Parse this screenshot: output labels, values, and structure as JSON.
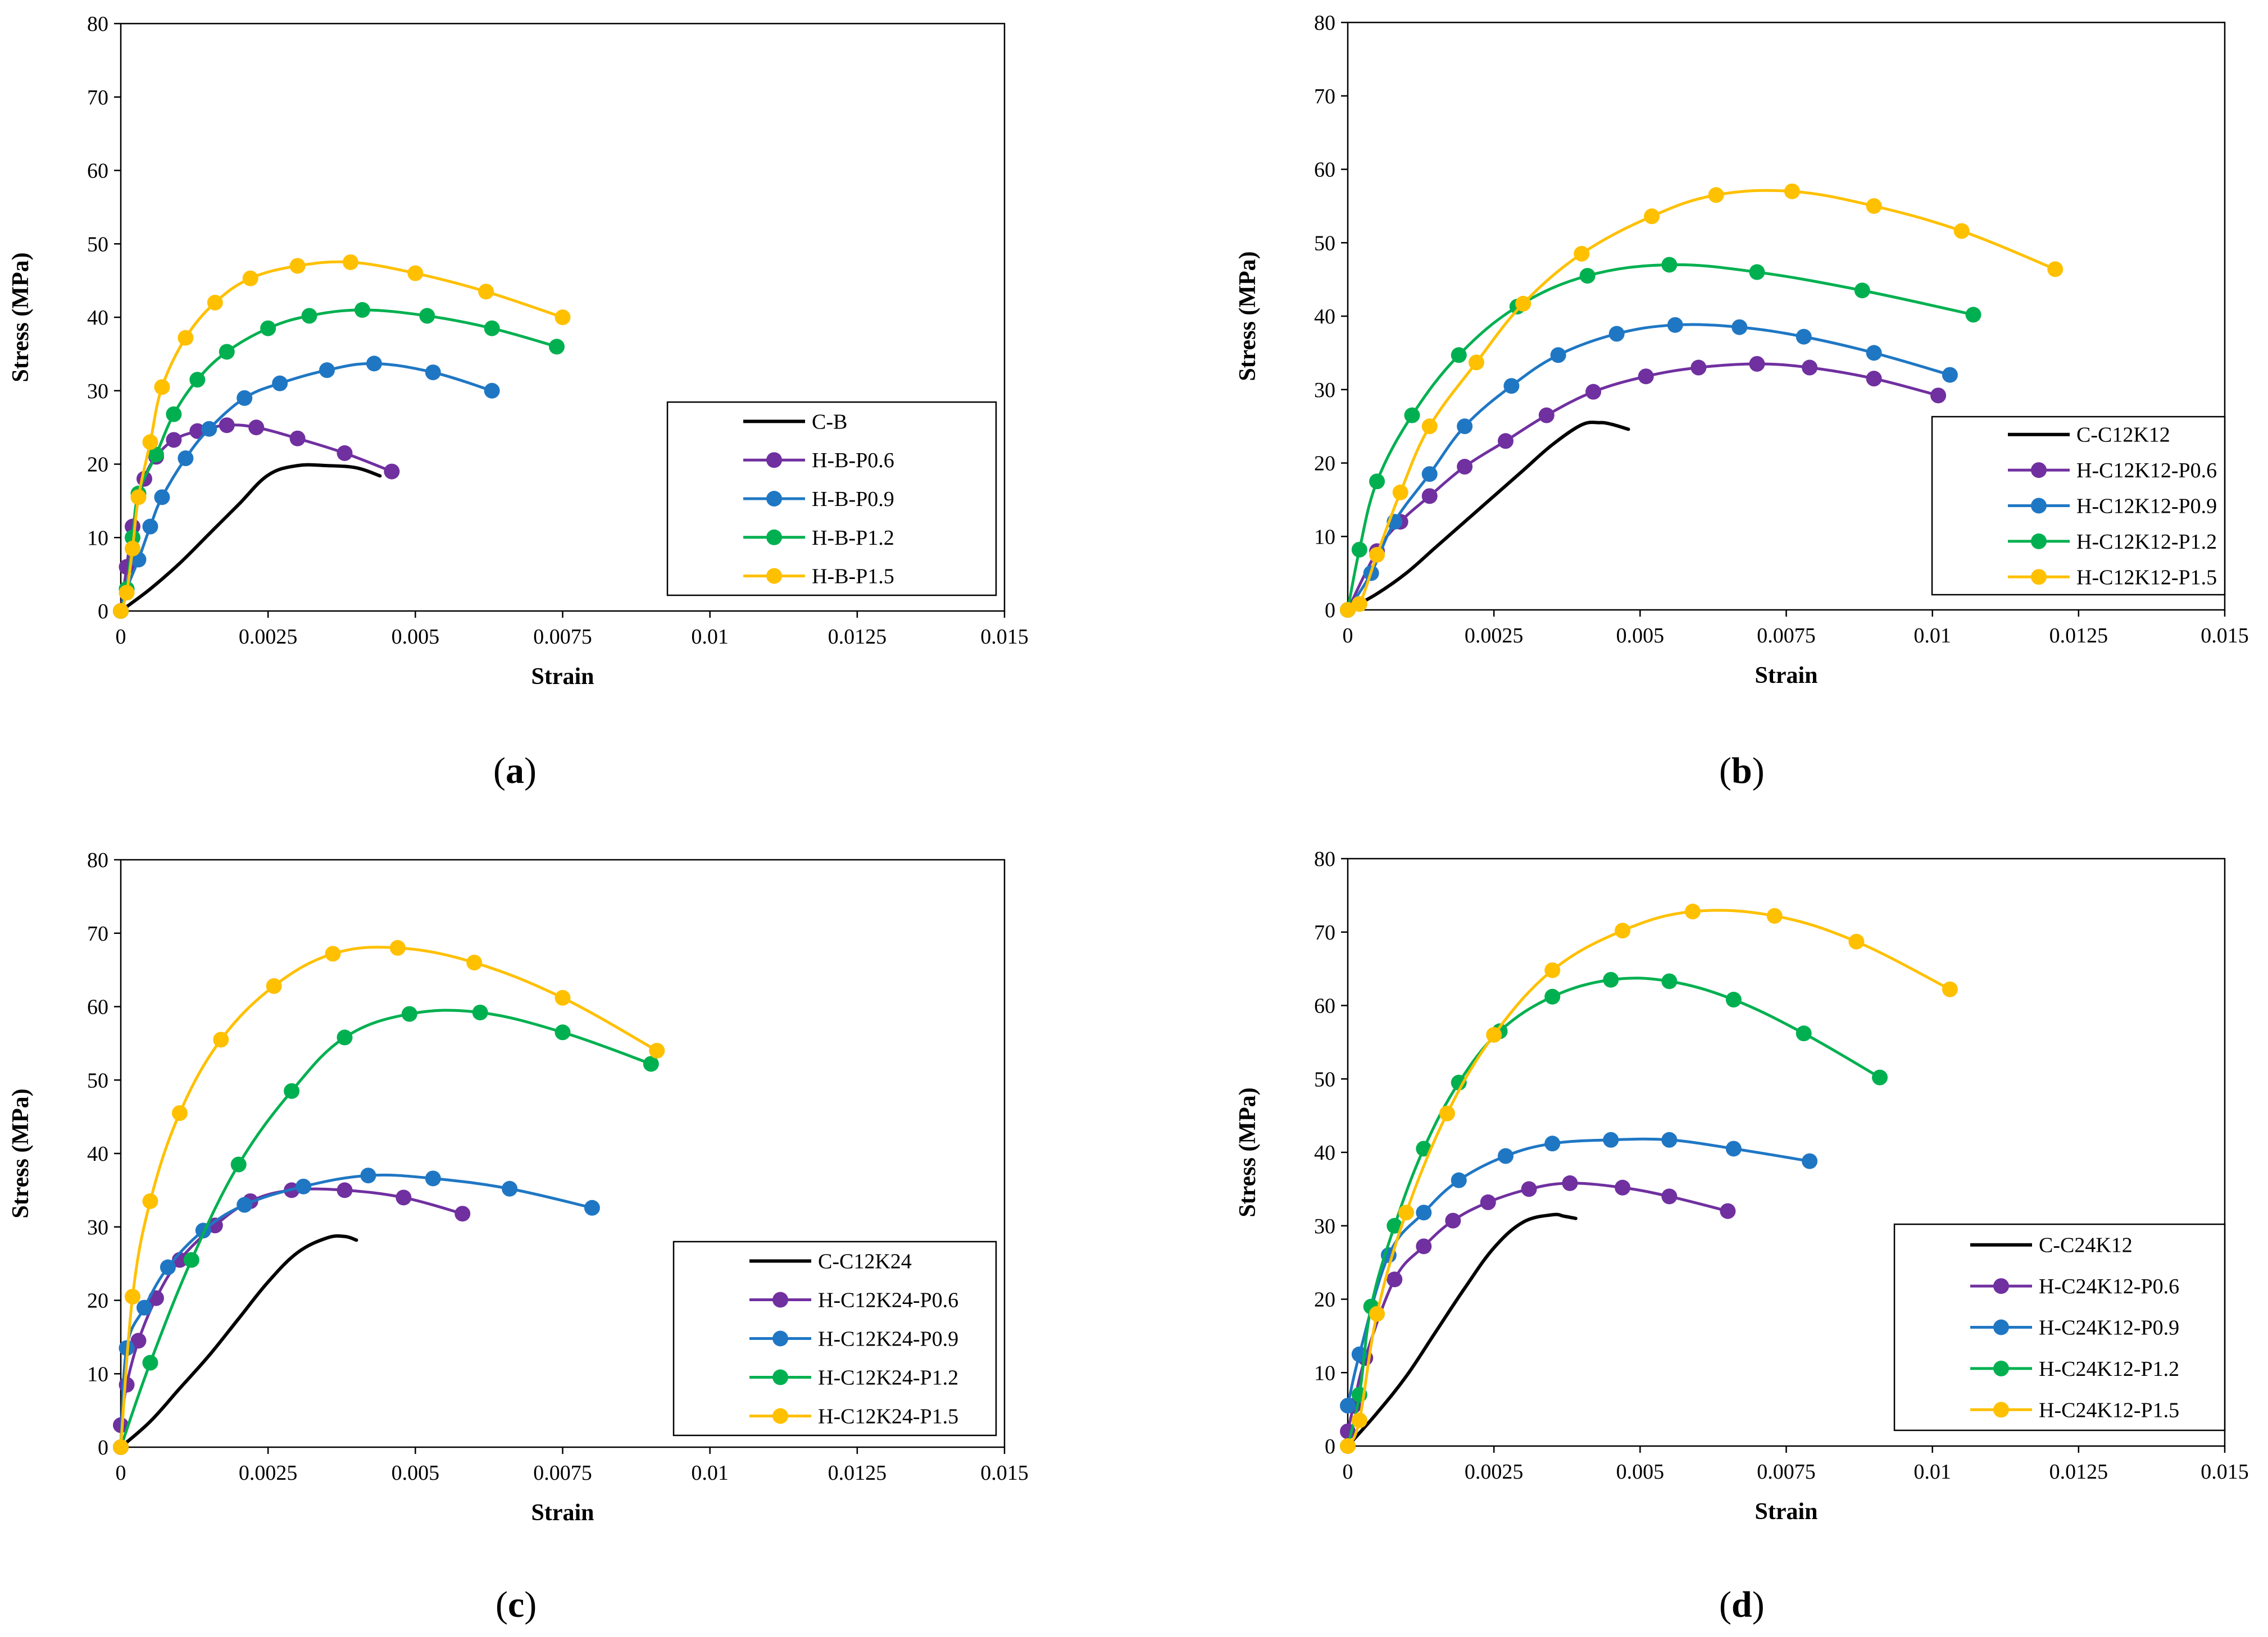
{
  "panels": [
    {
      "caption": "a",
      "chart_data": {
        "type": "line",
        "xlabel": "Strain",
        "ylabel": "Stress (MPa)",
        "xlim": [
          0,
          0.015
        ],
        "ylim": [
          0,
          80
        ],
        "xticks": [
          0,
          0.0025,
          0.005,
          0.0075,
          0.01,
          0.0125,
          0.015
        ],
        "xtick_labels": [
          "0",
          "0.0025",
          "0.005",
          "0.0075",
          "0.01",
          "0.0125",
          "0.015"
        ],
        "yticks": [
          0,
          10,
          20,
          30,
          40,
          50,
          60,
          70,
          80
        ],
        "ytick_labels": [
          "0",
          "10",
          "20",
          "30",
          "40",
          "50",
          "60",
          "70",
          "80"
        ],
        "legend_position": "center-right",
        "series": [
          {
            "name": "C-B",
            "color": "#000000",
            "markers": false,
            "x": [
              0,
              0.0005,
              0.001,
              0.0015,
              0.002,
              0.0025,
              0.003,
              0.0035,
              0.004,
              0.0044
            ],
            "y": [
              0,
              3,
              6.5,
              10.5,
              14.5,
              18.5,
              19.8,
              19.8,
              19.5,
              18.4
            ]
          },
          {
            "name": "H-B-P0.6",
            "color": "#7030A0",
            "markers": true,
            "x": [
              0,
              0.0001,
              0.0002,
              0.0004,
              0.0006,
              0.0009,
              0.0013,
              0.0018,
              0.0023,
              0.003,
              0.0038,
              0.0046
            ],
            "y": [
              0,
              6,
              11.5,
              18,
              21,
              23.3,
              24.5,
              25.3,
              25,
              23.5,
              21.5,
              19
            ]
          },
          {
            "name": "H-B-P0.9",
            "color": "#1F77C4",
            "markers": true,
            "x": [
              0,
              0.0001,
              0.0003,
              0.0005,
              0.0007,
              0.0011,
              0.0015,
              0.0021,
              0.0027,
              0.0035,
              0.0043,
              0.0053,
              0.0063
            ],
            "y": [
              0,
              3,
              7,
              11.5,
              15.5,
              20.8,
              24.8,
              29,
              31,
              32.8,
              33.7,
              32.5,
              30
            ]
          },
          {
            "name": "H-B-P1.2",
            "color": "#00B050",
            "markers": true,
            "x": [
              0,
              0.0001,
              0.0002,
              0.0003,
              0.0006,
              0.0009,
              0.0013,
              0.0018,
              0.0025,
              0.0032,
              0.0041,
              0.0052,
              0.0063,
              0.0074
            ],
            "y": [
              0,
              3,
              10,
              16,
              21.3,
              26.8,
              31.5,
              35.3,
              38.5,
              40.2,
              41,
              40.2,
              38.5,
              36
            ]
          },
          {
            "name": "H-B-P1.5",
            "color": "#FFC000",
            "markers": true,
            "x": [
              0,
              0.0001,
              0.0002,
              0.0003,
              0.0005,
              0.0007,
              0.0011,
              0.0016,
              0.0022,
              0.003,
              0.0039,
              0.005,
              0.0062,
              0.0075
            ],
            "y": [
              0,
              2.5,
              8.5,
              15.5,
              23,
              30.5,
              37.2,
              42,
              45.3,
              47,
              47.5,
              46,
              43.5,
              40
            ]
          }
        ]
      }
    },
    {
      "caption": "b",
      "chart_data": {
        "type": "line",
        "xlabel": "Strain",
        "ylabel": "Stress (MPa)",
        "xlim": [
          0,
          0.015
        ],
        "ylim": [
          0,
          80
        ],
        "xticks": [
          0,
          0.0025,
          0.005,
          0.0075,
          0.01,
          0.0125,
          0.015
        ],
        "xtick_labels": [
          "0",
          "0.0025",
          "0.005",
          "0.0075",
          "0.01",
          "0.0125",
          "0.015"
        ],
        "yticks": [
          0,
          10,
          20,
          30,
          40,
          50,
          60,
          70,
          80
        ],
        "ytick_labels": [
          "0",
          "10",
          "20",
          "30",
          "40",
          "50",
          "60",
          "70",
          "80"
        ],
        "legend_position": "bottom-right",
        "series": [
          {
            "name": "C-C12K12",
            "color": "#000000",
            "markers": false,
            "x": [
              0,
              0.0005,
              0.001,
              0.0015,
              0.002,
              0.0025,
              0.003,
              0.0035,
              0.004,
              0.0043,
              0.0045,
              0.0048
            ],
            "y": [
              0,
              2.2,
              5,
              8.5,
              12,
              15.5,
              19,
              22.5,
              25.2,
              25.5,
              25.3,
              24.6
            ]
          },
          {
            "name": "H-C12K12-P0.6",
            "color": "#7030A0",
            "markers": true,
            "x": [
              0,
              0.0005,
              0.0009,
              0.0014,
              0.002,
              0.0027,
              0.0034,
              0.0042,
              0.0051,
              0.006,
              0.007,
              0.0079,
              0.009,
              0.0101
            ],
            "y": [
              0,
              8,
              12,
              15.5,
              19.5,
              23,
              26.5,
              29.7,
              31.8,
              33,
              33.5,
              33,
              31.5,
              29.2
            ]
          },
          {
            "name": "H-C12K12-P0.9",
            "color": "#1F77C4",
            "markers": true,
            "x": [
              0,
              0.0004,
              0.0008,
              0.0014,
              0.002,
              0.0028,
              0.0036,
              0.0046,
              0.0056,
              0.0067,
              0.0078,
              0.009,
              0.0103
            ],
            "y": [
              0,
              5,
              12,
              18.5,
              25,
              30.5,
              34.7,
              37.6,
              38.8,
              38.5,
              37.2,
              35,
              32
            ]
          },
          {
            "name": "H-C12K12-P1.2",
            "color": "#00B050",
            "markers": true,
            "x": [
              0,
              0.0002,
              0.0005,
              0.0011,
              0.0019,
              0.0029,
              0.0041,
              0.0055,
              0.007,
              0.0088,
              0.0107
            ],
            "y": [
              0,
              8.2,
              17.5,
              26.5,
              34.7,
              41.3,
              45.5,
              47,
              46,
              43.5,
              40.2
            ]
          },
          {
            "name": "H-C12K12-P1.5",
            "color": "#FFC000",
            "markers": true,
            "x": [
              0,
              0.0002,
              0.0005,
              0.0009,
              0.0014,
              0.0022,
              0.003,
              0.004,
              0.0052,
              0.0063,
              0.0076,
              0.009,
              0.0105,
              0.0121
            ],
            "y": [
              0,
              0.8,
              7.5,
              16,
              25,
              33.7,
              41.7,
              48.5,
              53.6,
              56.5,
              57,
              55,
              51.6,
              46.4
            ]
          }
        ]
      }
    },
    {
      "caption": "c",
      "chart_data": {
        "type": "line",
        "xlabel": "Strain",
        "ylabel": "Stress (MPa)",
        "xlim": [
          0,
          0.015
        ],
        "ylim": [
          0,
          80
        ],
        "xticks": [
          0,
          0.0025,
          0.005,
          0.0075,
          0.01,
          0.0125,
          0.015
        ],
        "xtick_labels": [
          "0",
          "0.0025",
          "0.005",
          "0.0075",
          "0.01",
          "0.0125",
          "0.015"
        ],
        "yticks": [
          0,
          10,
          20,
          30,
          40,
          50,
          60,
          70,
          80
        ],
        "ytick_labels": [
          "0",
          "10",
          "20",
          "30",
          "40",
          "50",
          "60",
          "70",
          "80"
        ],
        "legend_position": "bottom-right",
        "series": [
          {
            "name": "C-C12K24",
            "color": "#000000",
            "markers": false,
            "x": [
              0,
              0.0005,
              0.001,
              0.0015,
              0.002,
              0.0025,
              0.003,
              0.0035,
              0.0038,
              0.004
            ],
            "y": [
              0,
              3.5,
              8,
              12.5,
              17.5,
              22.5,
              26.5,
              28.5,
              28.7,
              28.2
            ]
          },
          {
            "name": "H-C12K24-P0.6",
            "color": "#7030A0",
            "markers": true,
            "x": [
              0,
              0.0001,
              0.0003,
              0.0006,
              0.001,
              0.0016,
              0.0022,
              0.0029,
              0.0038,
              0.0048,
              0.0058
            ],
            "y": [
              3,
              8.5,
              14.5,
              20.3,
              25.5,
              30.2,
              33.5,
              35,
              35,
              34,
              31.8
            ]
          },
          {
            "name": "H-C12K24-P0.9",
            "color": "#1F77C4",
            "markers": true,
            "x": [
              0,
              0.0001,
              0.0004,
              0.0008,
              0.0014,
              0.0021,
              0.0031,
              0.0042,
              0.0053,
              0.0066,
              0.008
            ],
            "y": [
              0,
              13.5,
              19,
              24.5,
              29.5,
              33,
              35.5,
              37,
              36.6,
              35.2,
              32.6
            ]
          },
          {
            "name": "H-C12K24-P1.2",
            "color": "#00B050",
            "markers": true,
            "x": [
              0,
              0.0005,
              0.0012,
              0.002,
              0.0029,
              0.0038,
              0.0049,
              0.0061,
              0.0075,
              0.009
            ],
            "y": [
              0,
              11.5,
              25.5,
              38.5,
              48.5,
              55.8,
              59,
              59.2,
              56.5,
              52.2
            ]
          },
          {
            "name": "H-C12K24-P1.5",
            "color": "#FFC000",
            "markers": true,
            "x": [
              0,
              0.0002,
              0.0005,
              0.001,
              0.0017,
              0.0026,
              0.0036,
              0.0047,
              0.006,
              0.0075,
              0.0091
            ],
            "y": [
              0,
              20.5,
              33.5,
              45.5,
              55.5,
              62.8,
              67.2,
              68,
              66,
              61.2,
              54
            ]
          }
        ]
      }
    },
    {
      "caption": "d",
      "chart_data": {
        "type": "line",
        "xlabel": "Strain",
        "ylabel": "Stress (MPa)",
        "xlim": [
          0,
          0.015
        ],
        "ylim": [
          0,
          80
        ],
        "xticks": [
          0,
          0.0025,
          0.005,
          0.0075,
          0.01,
          0.0125,
          0.015
        ],
        "xtick_labels": [
          "0",
          "0.0025",
          "0.005",
          "0.0075",
          "0.01",
          "0.0125",
          "0.015"
        ],
        "yticks": [
          0,
          10,
          20,
          30,
          40,
          50,
          60,
          70,
          80
        ],
        "ytick_labels": [
          "0",
          "10",
          "20",
          "30",
          "40",
          "50",
          "60",
          "70",
          "80"
        ],
        "legend_position": "bottom-right",
        "series": [
          {
            "name": "C-C24K12",
            "color": "#000000",
            "markers": false,
            "x": [
              0,
              0.0005,
              0.001,
              0.0015,
              0.002,
              0.0025,
              0.003,
              0.0035,
              0.0037,
              0.0039
            ],
            "y": [
              0,
              4.5,
              9.5,
              15.5,
              21.5,
              27,
              30.5,
              31.5,
              31.3,
              31
            ]
          },
          {
            "name": "H-C24K12-P0.6",
            "color": "#7030A0",
            "markers": true,
            "x": [
              0,
              0.0001,
              0.0003,
              0.0008,
              0.0013,
              0.0018,
              0.0024,
              0.0031,
              0.0038,
              0.0047,
              0.0055,
              0.0065
            ],
            "y": [
              2,
              5.5,
              12,
              22.7,
              27.2,
              30.7,
              33.2,
              35,
              35.8,
              35.2,
              34,
              32
            ]
          },
          {
            "name": "H-C24K12-P0.9",
            "color": "#1F77C4",
            "markers": true,
            "x": [
              0,
              0.0002,
              0.0007,
              0.0013,
              0.0019,
              0.0027,
              0.0035,
              0.0045,
              0.0055,
              0.0066,
              0.0079
            ],
            "y": [
              5.5,
              12.5,
              26,
              31.8,
              36.2,
              39.5,
              41.2,
              41.7,
              41.7,
              40.5,
              38.8
            ]
          },
          {
            "name": "H-C24K12-P1.2",
            "color": "#00B050",
            "markers": true,
            "x": [
              0,
              0.0002,
              0.0004,
              0.0008,
              0.0013,
              0.0019,
              0.0026,
              0.0035,
              0.0045,
              0.0055,
              0.0066,
              0.0078,
              0.0091
            ],
            "y": [
              0,
              7,
              19,
              30,
              40.5,
              49.5,
              56.5,
              61.2,
              63.5,
              63.3,
              60.8,
              56.2,
              50.2
            ]
          },
          {
            "name": "H-C24K12-P1.5",
            "color": "#FFC000",
            "markers": true,
            "x": [
              0,
              0.0002,
              0.0005,
              0.001,
              0.0017,
              0.0025,
              0.0035,
              0.0047,
              0.0059,
              0.0073,
              0.0087,
              0.0103
            ],
            "y": [
              0,
              3.5,
              18,
              31.8,
              45.3,
              56,
              64.8,
              70.2,
              72.8,
              72.2,
              68.7,
              62.2
            ]
          }
        ]
      }
    }
  ]
}
